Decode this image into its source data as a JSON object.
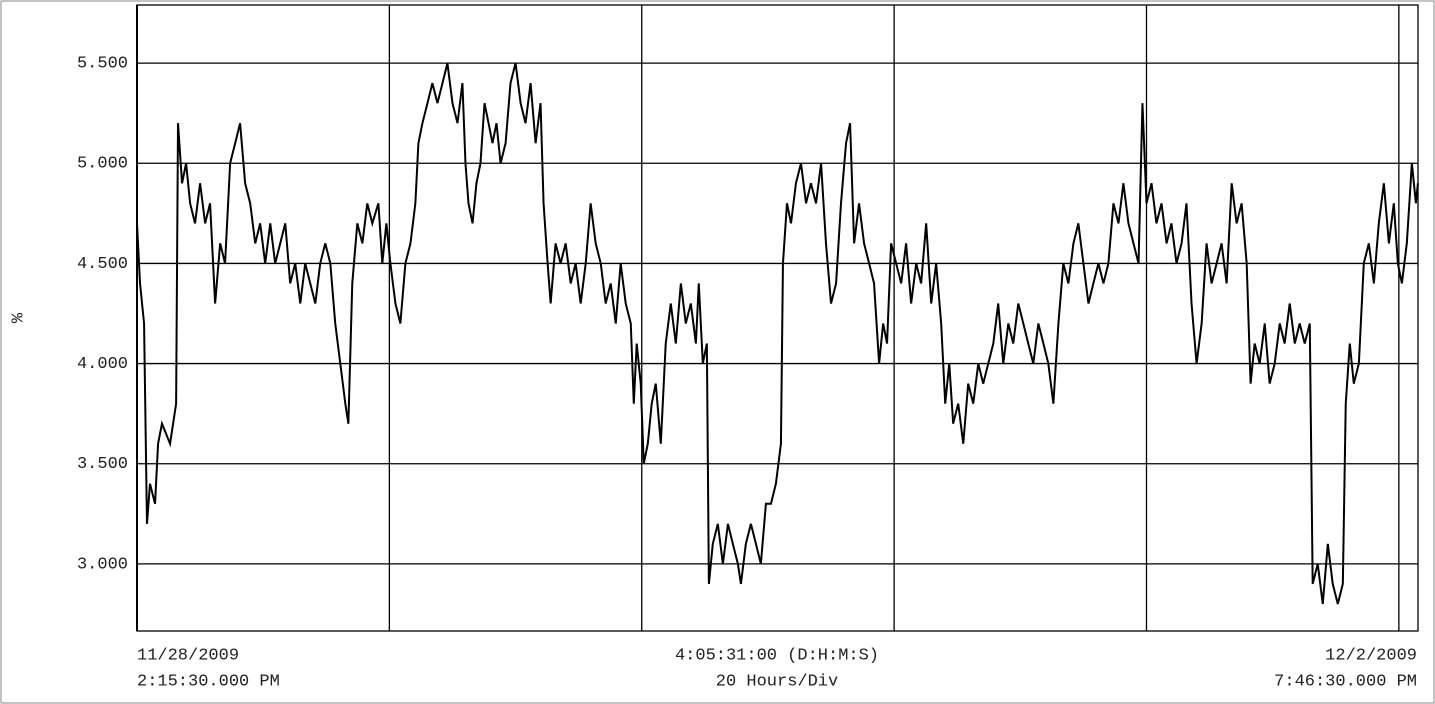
{
  "chart_data": {
    "type": "line",
    "ylabel": "%",
    "x_axis_labels": {
      "start": [
        "11/28/2009",
        "2:15:30.000 PM"
      ],
      "center": [
        "4:05:31:00 (D:H:M:S)",
        "20 Hours/Div"
      ],
      "end": [
        "12/2/2009",
        "7:46:30.000 PM"
      ]
    },
    "xlim": [
      0,
      101.5167
    ],
    "xticks": [
      20,
      40,
      60,
      80,
      100
    ],
    "ylim": [
      2.665,
      5.79
    ],
    "yticks": [
      {
        "value": 3.0,
        "label": "3.000"
      },
      {
        "value": 3.5,
        "label": "3.500"
      },
      {
        "value": 4.0,
        "label": "4.000"
      },
      {
        "value": 4.5,
        "label": "4.500"
      },
      {
        "value": 5.0,
        "label": "5.000"
      },
      {
        "value": 5.5,
        "label": "5.500"
      }
    ],
    "grid": true,
    "series": [
      {
        "color": "#000000",
        "x": [
          0,
          0.24,
          0.56,
          0.79,
          1.03,
          1.43,
          1.67,
          1.98,
          2.62,
          3.1,
          3.25,
          3.57,
          3.89,
          4.21,
          4.6,
          5.0,
          5.4,
          5.79,
          6.19,
          6.59,
          6.98,
          7.38,
          7.78,
          8.17,
          8.57,
          8.97,
          9.37,
          9.76,
          10.16,
          10.56,
          10.95,
          11.35,
          11.75,
          12.14,
          12.54,
          12.94,
          13.33,
          13.73,
          14.13,
          14.52,
          14.92,
          15.32,
          15.71,
          16.11,
          16.51,
          16.75,
          17.06,
          17.46,
          17.86,
          18.25,
          18.65,
          19.13,
          19.44,
          19.76,
          20.08,
          20.48,
          20.87,
          21.27,
          21.67,
          22.06,
          22.3,
          22.62,
          23.02,
          23.41,
          23.81,
          24.21,
          24.6,
          25.0,
          25.4,
          25.79,
          26.03,
          26.27,
          26.59,
          26.9,
          27.22,
          27.54,
          27.86,
          28.17,
          28.49,
          28.81,
          29.21,
          29.6,
          30.0,
          30.4,
          30.79,
          31.19,
          31.59,
          31.98,
          32.22,
          32.54,
          32.78,
          33.17,
          33.57,
          33.97,
          34.37,
          34.76,
          35.16,
          35.56,
          35.95,
          36.35,
          36.75,
          37.14,
          37.54,
          37.94,
          38.33,
          38.73,
          39.13,
          39.37,
          39.6,
          39.92,
          40.16,
          40.48,
          40.79,
          41.11,
          41.51,
          41.9,
          42.3,
          42.7,
          43.1,
          43.49,
          43.89,
          44.29,
          44.52,
          44.84,
          45.16,
          45.32,
          45.63,
          46.03,
          46.43,
          46.83,
          47.22,
          47.62,
          47.86,
          48.25,
          48.65,
          49.05,
          49.44,
          49.84,
          50.24,
          50.63,
          51.03,
          51.19,
          51.51,
          51.83,
          52.22,
          52.62,
          53.02,
          53.41,
          53.81,
          54.21,
          54.6,
          55.0,
          55.4,
          55.79,
          56.19,
          56.51,
          56.83,
          57.22,
          57.62,
          58.02,
          58.41,
          58.81,
          59.13,
          59.44,
          59.76,
          60.16,
          60.56,
          60.95,
          61.35,
          61.75,
          62.14,
          62.54,
          62.94,
          63.33,
          63.73,
          64.05,
          64.37,
          64.68,
          65.08,
          65.48,
          65.87,
          66.27,
          66.67,
          67.06,
          67.46,
          67.86,
          68.25,
          68.65,
          69.05,
          69.44,
          69.84,
          70.24,
          70.63,
          71.03,
          71.43,
          71.83,
          72.22,
          72.62,
          73.02,
          73.41,
          73.81,
          74.21,
          74.6,
          75.0,
          75.4,
          75.79,
          76.19,
          76.59,
          76.98,
          77.38,
          77.78,
          78.17,
          78.57,
          78.97,
          79.37,
          79.68,
          80.0,
          80.4,
          80.79,
          81.19,
          81.59,
          81.98,
          82.38,
          82.78,
          83.17,
          83.57,
          83.97,
          84.37,
          84.76,
          85.16,
          85.56,
          85.95,
          86.35,
          86.75,
          87.14,
          87.54,
          87.94,
          88.25,
          88.57,
          88.97,
          89.37,
          89.76,
          90.16,
          90.56,
          90.95,
          91.35,
          91.75,
          92.14,
          92.54,
          92.94,
          93.17,
          93.57,
          93.97,
          94.37,
          94.76,
          95.16,
          95.56,
          95.79,
          96.11,
          96.43,
          96.83,
          97.22,
          97.62,
          98.02,
          98.41,
          98.81,
          99.21,
          99.6,
          99.92,
          100.24,
          100.63,
          101.03,
          101.35,
          101.51
        ],
        "values": [
          4.7,
          4.4,
          4.2,
          3.2,
          3.4,
          3.3,
          3.6,
          3.7,
          3.6,
          3.8,
          5.2,
          4.9,
          5.0,
          4.8,
          4.7,
          4.9,
          4.7,
          4.8,
          4.3,
          4.6,
          4.5,
          5.0,
          5.1,
          5.2,
          4.9,
          4.8,
          4.6,
          4.7,
          4.5,
          4.7,
          4.5,
          4.6,
          4.7,
          4.4,
          4.5,
          4.3,
          4.5,
          4.4,
          4.3,
          4.5,
          4.6,
          4.5,
          4.2,
          4.0,
          3.8,
          3.7,
          4.4,
          4.7,
          4.6,
          4.8,
          4.7,
          4.8,
          4.5,
          4.7,
          4.5,
          4.3,
          4.2,
          4.5,
          4.6,
          4.8,
          5.1,
          5.2,
          5.3,
          5.4,
          5.3,
          5.4,
          5.5,
          5.3,
          5.2,
          5.4,
          5.0,
          4.8,
          4.7,
          4.9,
          5.0,
          5.3,
          5.2,
          5.1,
          5.2,
          5.0,
          5.1,
          5.4,
          5.5,
          5.3,
          5.2,
          5.4,
          5.1,
          5.3,
          4.8,
          4.5,
          4.3,
          4.6,
          4.5,
          4.6,
          4.4,
          4.5,
          4.3,
          4.5,
          4.8,
          4.6,
          4.5,
          4.3,
          4.4,
          4.2,
          4.5,
          4.3,
          4.2,
          3.8,
          4.1,
          3.9,
          3.5,
          3.6,
          3.8,
          3.9,
          3.6,
          4.1,
          4.3,
          4.1,
          4.4,
          4.2,
          4.3,
          4.1,
          4.4,
          4.0,
          4.1,
          2.9,
          3.1,
          3.2,
          3.0,
          3.2,
          3.1,
          3.0,
          2.9,
          3.1,
          3.2,
          3.1,
          3.0,
          3.3,
          3.3,
          3.4,
          3.6,
          4.5,
          4.8,
          4.7,
          4.9,
          5.0,
          4.8,
          4.9,
          4.8,
          5.0,
          4.6,
          4.3,
          4.4,
          4.8,
          5.1,
          5.2,
          4.6,
          4.8,
          4.6,
          4.5,
          4.4,
          4.0,
          4.2,
          4.1,
          4.6,
          4.5,
          4.4,
          4.6,
          4.3,
          4.5,
          4.4,
          4.7,
          4.3,
          4.5,
          4.2,
          3.8,
          4.0,
          3.7,
          3.8,
          3.6,
          3.9,
          3.8,
          4.0,
          3.9,
          4.0,
          4.1,
          4.3,
          4.0,
          4.2,
          4.1,
          4.3,
          4.2,
          4.1,
          4.0,
          4.2,
          4.1,
          4.0,
          3.8,
          4.2,
          4.5,
          4.4,
          4.6,
          4.7,
          4.5,
          4.3,
          4.4,
          4.5,
          4.4,
          4.5,
          4.8,
          4.7,
          4.9,
          4.7,
          4.6,
          4.5,
          5.3,
          4.8,
          4.9,
          4.7,
          4.8,
          4.6,
          4.7,
          4.5,
          4.6,
          4.8,
          4.3,
          4.0,
          4.2,
          4.6,
          4.4,
          4.5,
          4.6,
          4.4,
          4.9,
          4.7,
          4.8,
          4.5,
          3.9,
          4.1,
          4.0,
          4.2,
          3.9,
          4.0,
          4.2,
          4.1,
          4.3,
          4.1,
          4.2,
          4.1,
          4.2,
          2.9,
          3.0,
          2.8,
          3.1,
          2.9,
          2.8,
          2.9,
          3.8,
          4.1,
          3.9,
          4.0,
          4.5,
          4.6,
          4.4,
          4.7,
          4.9,
          4.6,
          4.8,
          4.5,
          4.4,
          4.6,
          5.0,
          4.8,
          4.9
        ]
      }
    ]
  }
}
